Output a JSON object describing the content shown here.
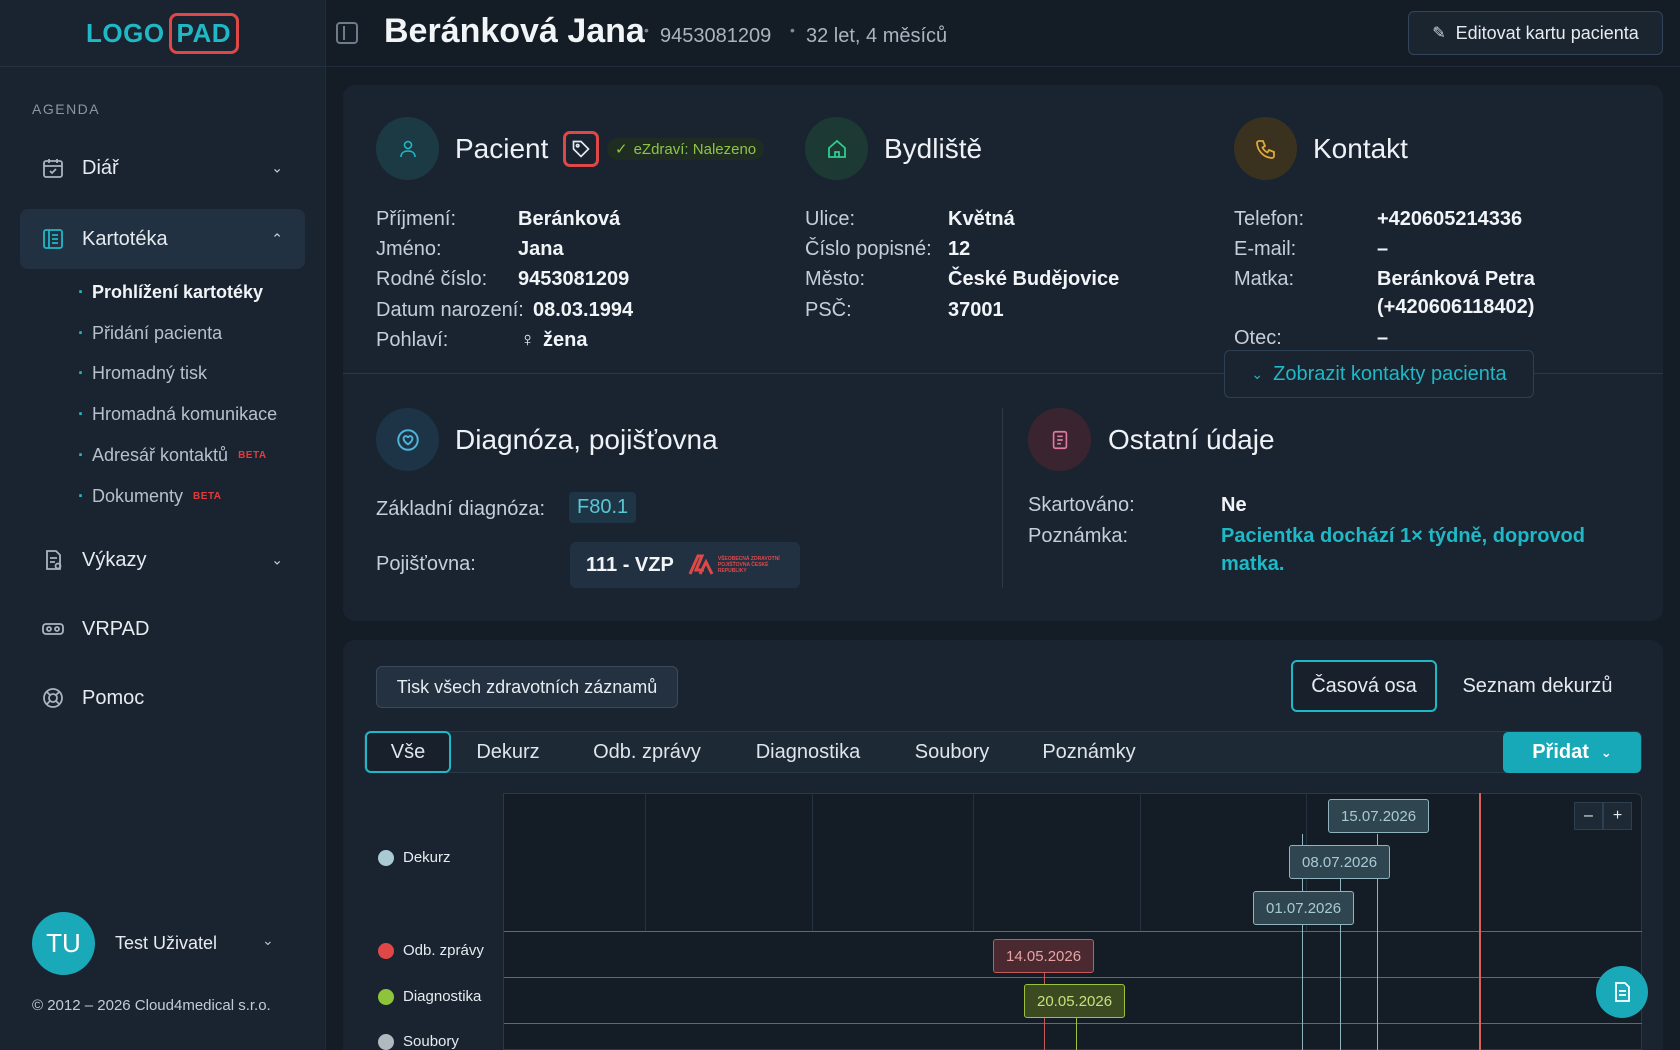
{
  "logo": {
    "part1": "LOGO",
    "part2": "PAD"
  },
  "sidebar": {
    "section_label": "AGENDA",
    "items": [
      {
        "label": "Diář",
        "icon": "calendar-icon"
      },
      {
        "label": "Kartotéka",
        "icon": "card-index-icon"
      },
      {
        "label": "Výkazy",
        "icon": "report-icon"
      },
      {
        "label": "VRPAD",
        "icon": "vr-headset-icon"
      },
      {
        "label": "Pomoc",
        "icon": "lifebuoy-icon"
      }
    ],
    "subitems": [
      {
        "label": "Prohlížení kartotéky"
      },
      {
        "label": "Přidání pacienta"
      },
      {
        "label": "Hromadný tisk"
      },
      {
        "label": "Hromadná komunikace"
      },
      {
        "label": "Adresář kontaktů",
        "badge": "BETA"
      },
      {
        "label": "Dokumenty",
        "badge": "BETA"
      }
    ],
    "user": {
      "initials": "TU",
      "name": "Test Uživatel"
    },
    "copyright": "© 2012 – 2026 Cloud4medical s.r.o."
  },
  "header": {
    "name": "Beránková Jana",
    "id": "9453081209",
    "age": "32 let, 4 měsíců",
    "edit_label": "Editovat kartu pacienta"
  },
  "patient": {
    "title": "Pacient",
    "ezdravi": "eZdraví: Nalezeno",
    "fields": [
      {
        "k": "Příjmení:",
        "v": "Beránková"
      },
      {
        "k": "Jméno:",
        "v": "Jana"
      },
      {
        "k": "Rodné číslo:",
        "v": "9453081209"
      },
      {
        "k": "Datum narození:",
        "v": "08.03.1994"
      },
      {
        "k": "Pohlaví:",
        "v": "žena"
      }
    ]
  },
  "address": {
    "title": "Bydliště",
    "fields": [
      {
        "k": "Ulice:",
        "v": "Květná"
      },
      {
        "k": "Číslo popisné:",
        "v": "12"
      },
      {
        "k": "Město:",
        "v": "České Budějovice"
      },
      {
        "k": "PSČ:",
        "v": "37001"
      }
    ]
  },
  "contact": {
    "title": "Kontakt",
    "fields": [
      {
        "k": "Telefon:",
        "v": "+420605214336"
      },
      {
        "k": "E-mail:",
        "v": "–"
      },
      {
        "k": "Matka:",
        "v": "Beránková Petra"
      },
      {
        "k": "",
        "v": "(+420606118402)"
      },
      {
        "k": "Otec:",
        "v": "–"
      }
    ],
    "show_contacts": "Zobrazit kontakty pacienta"
  },
  "diagnosis": {
    "title": "Diagnóza, pojišťovna",
    "base_label": "Základní diagnóza:",
    "base_value": "F80.1",
    "insurance_label": "Pojišťovna:",
    "insurance_value": "111 - VZP",
    "insurance_logo_text": "VŠEOBECNÁ ZDRAVOTNÍ POJIŠŤOVNA ČESKÉ REPUBLIKY"
  },
  "other": {
    "title": "Ostatní údaje",
    "shredded_label": "Skartováno:",
    "shredded_value": "Ne",
    "note_label": "Poznámka:",
    "note_value": "Pacientka dochází 1× týdně, doprovod matka."
  },
  "records": {
    "print_all": "Tisk všech zdravotních záznamů",
    "view_timeline": "Časová osa",
    "view_list": "Seznam dekurzů",
    "tabs": [
      "Vše",
      "Dekurz",
      "Odb. zprávy",
      "Diagnostika",
      "Soubory",
      "Poznámky"
    ],
    "add_label": "Přidat"
  },
  "timeline": {
    "rows": [
      {
        "label": "Dekurz",
        "color": "#a9c9d3"
      },
      {
        "label": "Odb. zprávy",
        "color": "#e04848"
      },
      {
        "label": "Diagnostika",
        "color": "#8ec43a"
      },
      {
        "label": "Soubory",
        "color": "#b0b8c0"
      }
    ],
    "events": {
      "dekurz": [
        "15.07.2026",
        "08.07.2026",
        "01.07.2026"
      ],
      "odb": [
        "14.05.2026"
      ],
      "diag": [
        "20.05.2026"
      ]
    },
    "zoom_out": "–",
    "zoom_in": "+"
  },
  "colors": {
    "accent": "#1fb8c6",
    "danger": "#e04848",
    "success": "#8ec44a"
  }
}
